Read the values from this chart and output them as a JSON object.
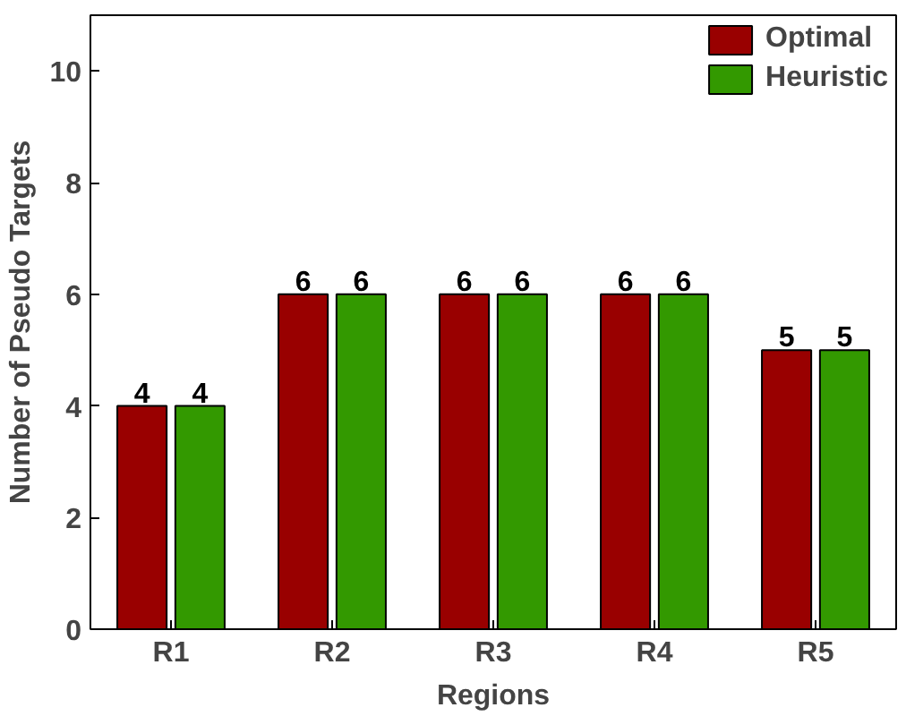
{
  "chart_data": {
    "type": "bar",
    "xlabel": "Regions",
    "ylabel": "Number of Pseudo Targets",
    "categories": [
      "R1",
      "R2",
      "R3",
      "R4",
      "R5"
    ],
    "series": [
      {
        "name": "Optimal",
        "color": "#990000",
        "values": [
          4,
          6,
          6,
          6,
          5
        ]
      },
      {
        "name": "Heuristic",
        "color": "#339900",
        "values": [
          4,
          6,
          6,
          6,
          5
        ]
      }
    ],
    "ylim": [
      0,
      11
    ],
    "yticks": [
      0,
      2,
      4,
      6,
      8,
      10
    ],
    "data_labels": true,
    "legend": "top right",
    "grid": false
  }
}
